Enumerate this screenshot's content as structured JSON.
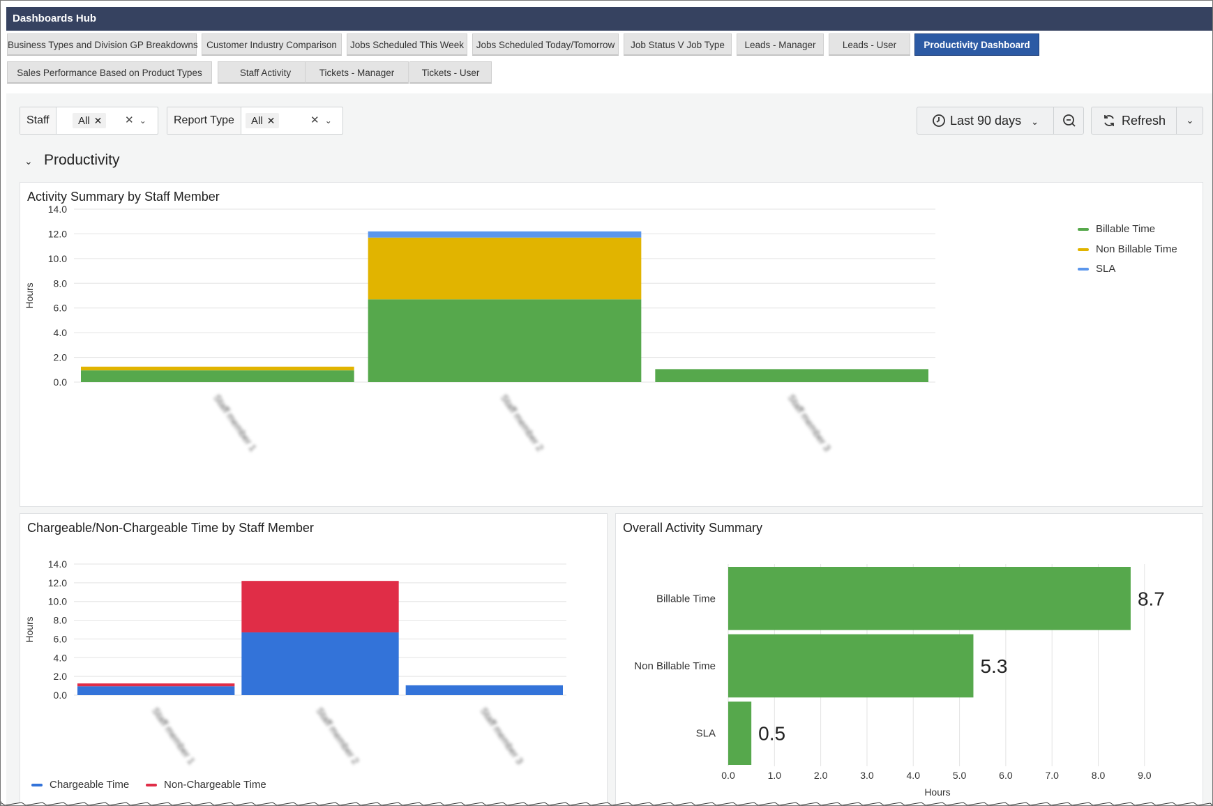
{
  "header": {
    "title": "Dashboards Hub"
  },
  "tabs": {
    "row1": [
      "Business Types and Division GP Breakdowns",
      "Customer Industry Comparison",
      "Jobs Scheduled This Week",
      "Jobs Scheduled Today/Tomorrow",
      "Job Status V Job Type",
      "Leads - Manager",
      "Leads - User",
      "Productivity Dashboard"
    ],
    "row2": [
      "Sales Performance Based on Product Types",
      "Staff Activity",
      "Tickets - Manager",
      "Tickets - User"
    ],
    "active": "Productivity Dashboard"
  },
  "filters": {
    "staff": {
      "label": "Staff",
      "value": "All"
    },
    "report_type": {
      "label": "Report Type",
      "value": "All"
    }
  },
  "toolbar": {
    "time_range": "Last 90 days",
    "refresh_label": "Refresh"
  },
  "section": {
    "title": "Productivity"
  },
  "colors": {
    "billable": "#56a84c",
    "non_billable": "#e1b400",
    "sla": "#5b96ec",
    "chargeable": "#3373d9",
    "non_chargeable": "#e02d47",
    "header_bg": "#364260",
    "active_tab": "#2c5aa4"
  },
  "charts": {
    "activity_summary": {
      "title": "Activity Summary by Staff Member",
      "ylabel": "Hours",
      "legend": [
        "Billable Time",
        "Non Billable Time",
        "SLA"
      ]
    },
    "chargeable": {
      "title": "Chargeable/Non-Chargeable Time by Staff Member",
      "ylabel": "Hours",
      "legend": [
        "Chargeable Time",
        "Non-Chargeable Time"
      ]
    },
    "overall": {
      "title": "Overall Activity Summary",
      "xlabel": "Hours"
    }
  },
  "chart_data": [
    {
      "type": "bar",
      "stacked": true,
      "title": "Activity Summary by Staff Member",
      "ylabel": "Hours",
      "ylim": [
        0,
        14
      ],
      "yticks": [
        "0.0",
        "2.0",
        "4.0",
        "6.0",
        "8.0",
        "10.0",
        "12.0",
        "14.0"
      ],
      "categories": [
        "Staff member 1",
        "Staff member 2",
        "Staff member 3"
      ],
      "series": [
        {
          "name": "Billable Time",
          "values": [
            0.95,
            6.7,
            1.05
          ]
        },
        {
          "name": "Non Billable Time",
          "values": [
            0.3,
            5.0,
            0.0
          ]
        },
        {
          "name": "SLA",
          "values": [
            0.0,
            0.5,
            0.0
          ]
        }
      ],
      "legend_position": "top-right"
    },
    {
      "type": "bar",
      "stacked": true,
      "title": "Chargeable/Non-Chargeable Time by Staff Member",
      "ylabel": "Hours",
      "ylim": [
        0,
        14
      ],
      "yticks": [
        "0.0",
        "2.0",
        "4.0",
        "6.0",
        "8.0",
        "10.0",
        "12.0",
        "14.0"
      ],
      "categories": [
        "Staff member 1",
        "Staff member 2",
        "Staff member 3"
      ],
      "series": [
        {
          "name": "Chargeable Time",
          "values": [
            0.95,
            6.7,
            1.05
          ]
        },
        {
          "name": "Non-Chargeable Time",
          "values": [
            0.3,
            5.5,
            0.0
          ]
        }
      ],
      "legend_position": "bottom-left"
    },
    {
      "type": "bar",
      "orientation": "horizontal",
      "title": "Overall Activity Summary",
      "xlabel": "Hours",
      "xlim": [
        0,
        9.5
      ],
      "xticks": [
        "0.0",
        "1.0",
        "2.0",
        "3.0",
        "4.0",
        "5.0",
        "6.0",
        "7.0",
        "8.0",
        "9.0"
      ],
      "categories": [
        "Billable Time",
        "Non Billable Time",
        "SLA"
      ],
      "values": [
        8.7,
        5.3,
        0.5
      ],
      "value_labels": [
        "8.7",
        "5.3",
        "0.5"
      ]
    }
  ]
}
